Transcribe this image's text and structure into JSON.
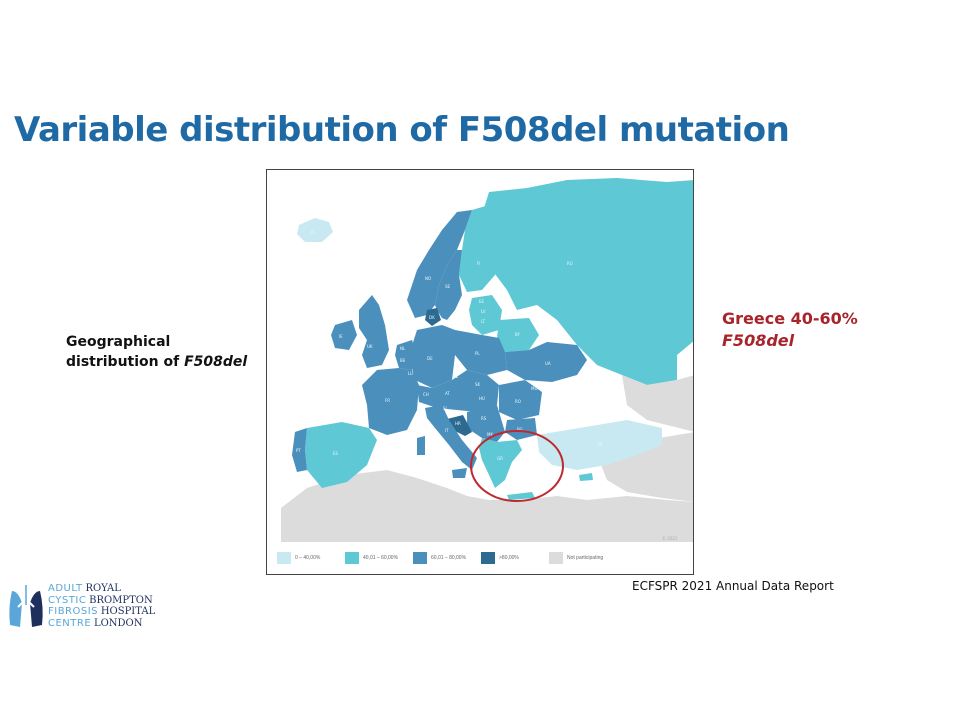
{
  "slide": {
    "title": "Variable distribution of F508del mutation",
    "left_caption": {
      "line1": "Geographical",
      "line2_prefix": "distribution of ",
      "line2_italic": "F508del"
    },
    "right_caption": {
      "line1": "Greece 40-60%",
      "line2": "F508del"
    },
    "source": "ECFSPR 2021 Annual Data Report"
  },
  "map": {
    "legend": [
      {
        "label": "0 – 40,00%",
        "color": "#c9e9f2"
      },
      {
        "label": "40,01 – 60,00%",
        "color": "#5ec8d4"
      },
      {
        "label": "60,01 – 80,00%",
        "color": "#4b8fbd"
      },
      {
        "label": ">80,00%",
        "color": "#2d6a8f"
      },
      {
        "label": "Not participating",
        "color": "#dcdcdc"
      }
    ],
    "colors": {
      "sea": "#ffffff",
      "not_participating": "#dcdcdc",
      "band_0_40": "#c9e9f2",
      "band_40_60": "#5ec8d4",
      "band_60_80": "#4b8fbd",
      "band_80_plus": "#2d6a8f",
      "highlight_circle": "#c0282d"
    },
    "country_labels": [
      "RU",
      "FI",
      "SE",
      "NO",
      "IS",
      "EE",
      "LV",
      "LT",
      "BY",
      "UA",
      "PL",
      "DE",
      "DK",
      "NL",
      "BE",
      "UK",
      "IE",
      "FR",
      "ES",
      "PT",
      "IT",
      "CH",
      "AT",
      "CZ",
      "SK",
      "HU",
      "RO",
      "BG",
      "MK",
      "GR",
      "TR",
      "SI",
      "HR",
      "RS",
      "MD",
      "LU"
    ],
    "watermark": "© 2021"
  },
  "logo": {
    "words_left": [
      "ADULT",
      "CYSTIC",
      "FIBROSIS",
      "CENTRE"
    ],
    "words_right": [
      "ROYAL",
      "BROMPTON",
      "HOSPITAL",
      "LONDON"
    ]
  }
}
